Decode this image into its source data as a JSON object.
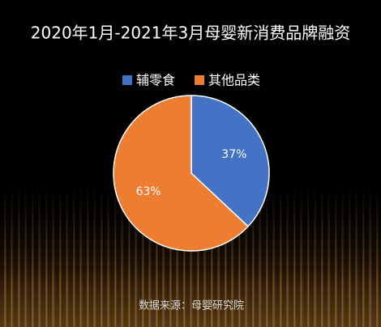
{
  "chart_data": {
    "type": "pie",
    "title": "2020年1月-2021年3月母婴新消费品牌融资",
    "categories": [
      "辅零食",
      "其他品类"
    ],
    "values": [
      37,
      63
    ],
    "value_labels": [
      "37%",
      "63%"
    ],
    "colors": [
      "#4472c4",
      "#ed7d31"
    ],
    "source": "数据来源：母婴研究院"
  }
}
